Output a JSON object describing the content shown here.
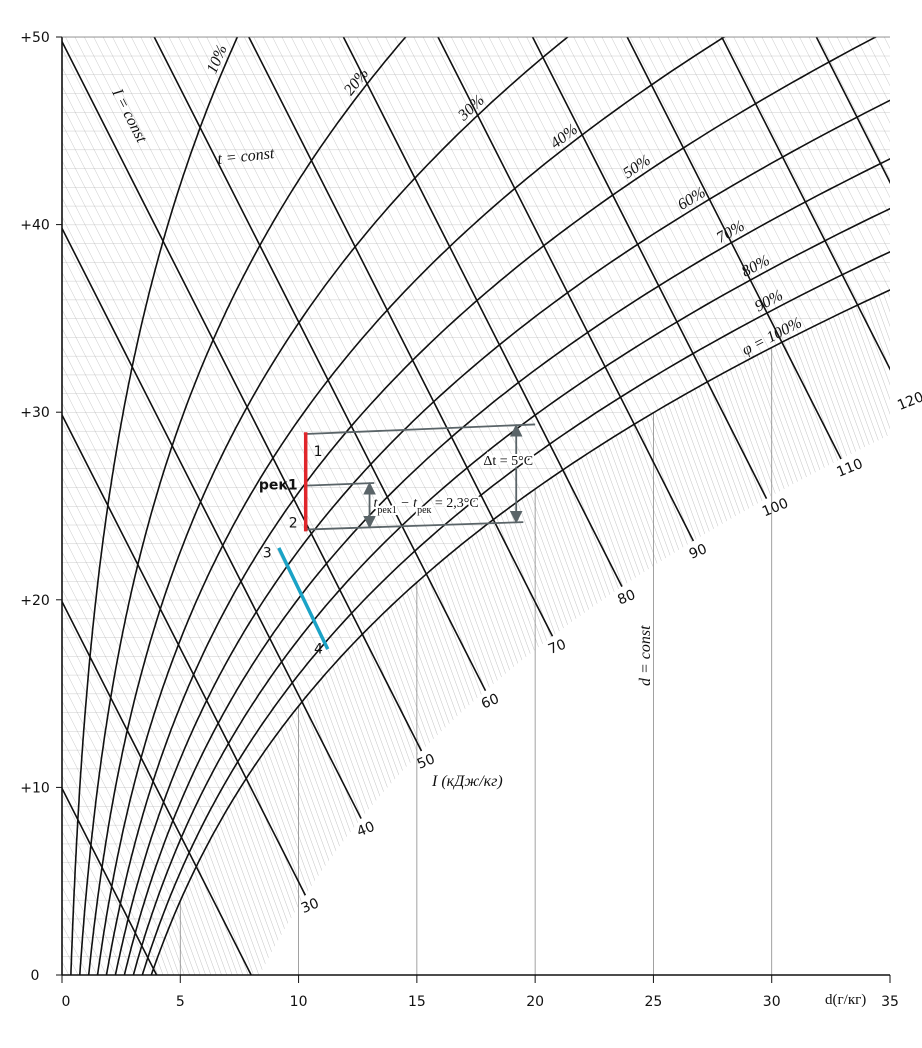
{
  "chart_data": {
    "type": "psychrometric",
    "xlim": [
      0,
      35
    ],
    "xticks": [
      0,
      5,
      10,
      15,
      20,
      25,
      30,
      35
    ],
    "x_label": "d(г/кг)",
    "ylim": [
      0,
      50
    ],
    "yticks": [
      0,
      {
        "value": 10,
        "label": "+10"
      },
      {
        "value": 20,
        "label": "+20"
      },
      {
        "value": 30,
        "label": "+30"
      },
      {
        "value": 40,
        "label": "+40"
      },
      {
        "value": 50,
        "label": "+50"
      }
    ],
    "humidity_curves": [
      {
        "phi": 10,
        "label": "10%"
      },
      {
        "phi": 20,
        "label": "20%"
      },
      {
        "phi": 30,
        "label": "30%"
      },
      {
        "phi": 40,
        "label": "40%"
      },
      {
        "phi": 50,
        "label": "50%"
      },
      {
        "phi": 60,
        "label": "60%"
      },
      {
        "phi": 70,
        "label": "70%"
      },
      {
        "phi": 80,
        "label": "80%"
      },
      {
        "phi": 90,
        "label": "90%"
      },
      {
        "phi": 100,
        "label": "φ = 100%"
      }
    ],
    "enthalpy_lines": [
      30,
      40,
      50,
      60,
      70,
      80,
      90,
      100,
      110,
      120
    ],
    "enthalpy_lines_unlabeled": [
      10,
      20,
      130
    ],
    "labels": {
      "i_const": "I = const",
      "t_const": "t = const",
      "d_const": "d = const",
      "i_unit": "I (кДж/кг)"
    },
    "series": [
      {
        "color": "#e0262b",
        "points": [
          {
            "label": "1",
            "d": 10.3,
            "t": 28.3
          },
          {
            "label": "рек1",
            "d": 10.3,
            "t": 25.6
          },
          {
            "label": "2",
            "d": 10.3,
            "t": 23.3
          }
        ]
      },
      {
        "color": "#1ba3c6",
        "points": [
          {
            "label": "3",
            "d": 9.2,
            "t": 22.3
          },
          {
            "label": "4",
            "d": 11.2,
            "t": 17.1
          }
        ]
      }
    ],
    "annotations": {
      "delta_t": "Δt = 5°C",
      "delta_rek": [
        "t",
        "рек1",
        " − t",
        "рек",
        " = 2,3°C"
      ]
    }
  }
}
